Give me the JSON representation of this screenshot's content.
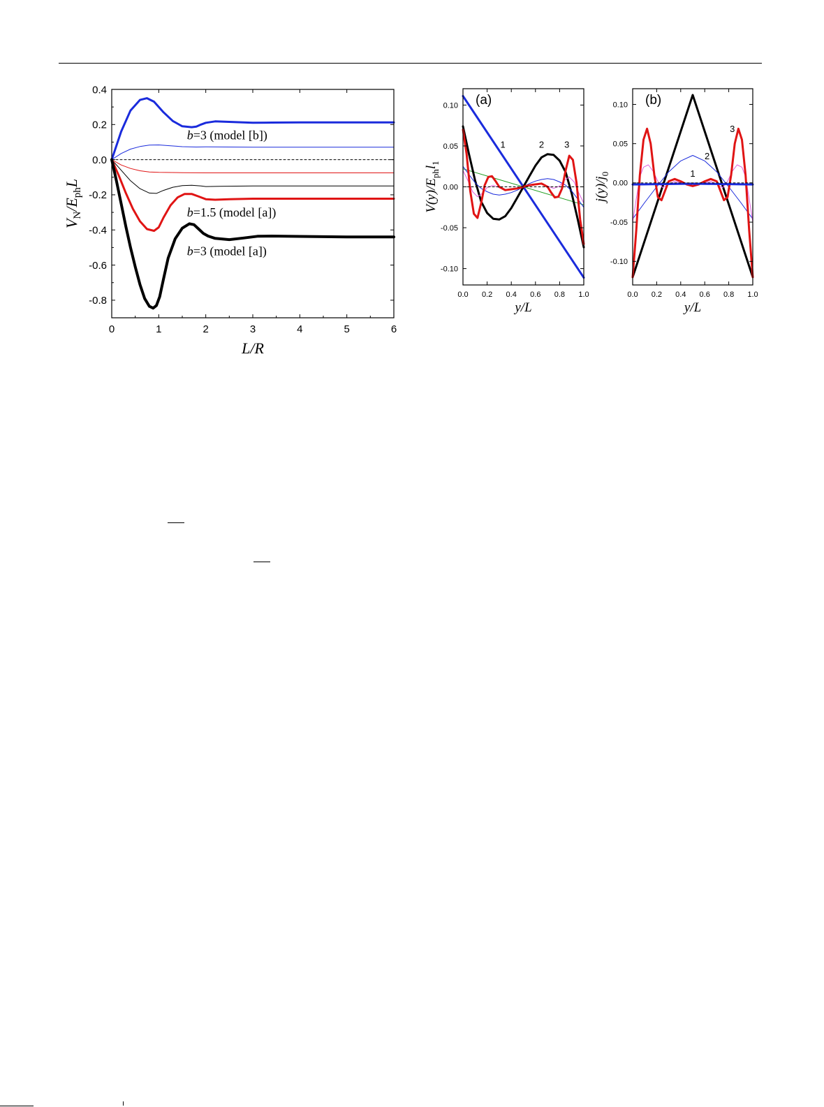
{
  "colors": {
    "black": "#000000",
    "blue": "#1a2bdc",
    "red": "#e01414",
    "green": "#1a9a1a",
    "magenta": "#e060e0"
  },
  "chart_data": [
    {
      "type": "line",
      "ylabel_main": "V",
      "ylabel_sub1": "N",
      "ylabel_mid": "/E",
      "ylabel_sub2": "ph",
      "ylabel_end": "L",
      "xlabel_main": "L/R",
      "xlim": [
        0,
        6
      ],
      "ylim": [
        -0.9,
        0.4
      ],
      "xticks": [
        0,
        1,
        2,
        3,
        4,
        5,
        6
      ],
      "yticks": [
        -0.8,
        -0.6,
        -0.4,
        -0.2,
        0.0,
        0.2,
        0.4
      ],
      "ytick_labels": [
        "-0.8",
        "-0.6",
        "-0.4",
        "-0.2",
        "0.0",
        "0.2",
        "0.4"
      ],
      "xtick_labels": [
        "0",
        "1",
        "2",
        "3",
        "4",
        "5",
        "6"
      ],
      "annotations": [
        {
          "pre": "b",
          "post": "=3 (model [b])",
          "x": 1.6,
          "y": 0.14
        },
        {
          "pre": "b",
          "post": "=1.5 (model [a])",
          "x": 1.6,
          "y": -0.3
        },
        {
          "pre": "b",
          "post": "=3 (model [a])",
          "x": 1.6,
          "y": -0.52
        }
      ],
      "series": [
        {
          "color": "blue",
          "width": 3,
          "x": [
            0,
            0.2,
            0.4,
            0.6,
            0.75,
            0.9,
            1.1,
            1.3,
            1.5,
            1.7,
            1.8,
            1.9,
            2.0,
            2.2,
            2.6,
            3.0,
            3.4,
            4,
            5,
            6
          ],
          "y": [
            0,
            0.16,
            0.28,
            0.34,
            0.35,
            0.33,
            0.27,
            0.22,
            0.19,
            0.185,
            0.188,
            0.2,
            0.21,
            0.218,
            0.214,
            0.21,
            0.211,
            0.212,
            0.212,
            0.212
          ]
        },
        {
          "color": "blue",
          "width": 1,
          "x": [
            0,
            0.2,
            0.4,
            0.6,
            0.8,
            1.0,
            1.2,
            1.5,
            1.8,
            2.0,
            2.5,
            3,
            4,
            5,
            6
          ],
          "y": [
            0,
            0.035,
            0.06,
            0.075,
            0.083,
            0.084,
            0.08,
            0.074,
            0.072,
            0.073,
            0.072,
            0.071,
            0.071,
            0.071,
            0.071
          ]
        },
        {
          "color": "red",
          "width": 1,
          "x": [
            0,
            0.2,
            0.4,
            0.6,
            0.8,
            1.0,
            1.5,
            2.0,
            3,
            4,
            5,
            6
          ],
          "y": [
            0,
            -0.03,
            -0.05,
            -0.063,
            -0.07,
            -0.072,
            -0.074,
            -0.075,
            -0.075,
            -0.075,
            -0.075,
            -0.075
          ]
        },
        {
          "color": "black",
          "width": 1,
          "x": [
            0,
            0.2,
            0.4,
            0.6,
            0.8,
            0.95,
            1.1,
            1.3,
            1.5,
            1.7,
            1.9,
            2.0,
            2.3,
            3,
            4,
            5,
            6
          ],
          "y": [
            0,
            -0.06,
            -0.12,
            -0.165,
            -0.19,
            -0.192,
            -0.175,
            -0.157,
            -0.148,
            -0.146,
            -0.15,
            -0.153,
            -0.152,
            -0.15,
            -0.15,
            -0.15,
            -0.15
          ]
        },
        {
          "color": "red",
          "width": 3,
          "x": [
            0,
            0.15,
            0.3,
            0.45,
            0.6,
            0.75,
            0.9,
            1.0,
            1.1,
            1.25,
            1.4,
            1.55,
            1.7,
            1.85,
            2.0,
            2.2,
            2.5,
            3,
            4,
            5,
            6
          ],
          "y": [
            0,
            -0.09,
            -0.19,
            -0.28,
            -0.35,
            -0.395,
            -0.405,
            -0.385,
            -0.33,
            -0.26,
            -0.215,
            -0.195,
            -0.195,
            -0.21,
            -0.225,
            -0.228,
            -0.225,
            -0.222,
            -0.222,
            -0.222,
            -0.222
          ]
        },
        {
          "color": "black",
          "width": 4,
          "x": [
            0,
            0.1,
            0.2,
            0.3,
            0.4,
            0.5,
            0.6,
            0.7,
            0.8,
            0.88,
            0.95,
            1.02,
            1.1,
            1.2,
            1.35,
            1.5,
            1.65,
            1.75,
            1.85,
            1.95,
            2.05,
            2.2,
            2.5,
            2.8,
            3.1,
            3.4,
            4,
            5,
            6
          ],
          "y": [
            0,
            -0.12,
            -0.25,
            -0.38,
            -0.5,
            -0.61,
            -0.71,
            -0.79,
            -0.835,
            -0.845,
            -0.83,
            -0.78,
            -0.68,
            -0.56,
            -0.45,
            -0.39,
            -0.365,
            -0.37,
            -0.395,
            -0.42,
            -0.435,
            -0.448,
            -0.455,
            -0.446,
            -0.436,
            -0.435,
            -0.437,
            -0.44,
            -0.44
          ]
        },
        {
          "color": "black",
          "width": 1,
          "dash": true,
          "x": [
            0,
            6
          ],
          "y": [
            0,
            0
          ]
        }
      ]
    },
    {
      "type": "line",
      "panel_label": "(a)",
      "ylabel_pre": "V(y)/E",
      "ylabel_sub1": "ph",
      "ylabel_mid": "l",
      "ylabel_sub2": "1",
      "xlabel": "y/L",
      "xlim": [
        0,
        1
      ],
      "ylim": [
        -0.12,
        0.12
      ],
      "xtick_labels": [
        "0.0",
        "0.2",
        "0.4",
        "0.6",
        "0.8",
        "1.0"
      ],
      "xticks": [
        0,
        0.2,
        0.4,
        0.6,
        0.8,
        1.0
      ],
      "ytick_labels": [
        "-0.10",
        "-0.05",
        "0.00",
        "0.05",
        "0.10"
      ],
      "yticks": [
        -0.1,
        -0.05,
        0,
        0.05,
        0.1
      ],
      "curve_labels": [
        {
          "text": "1",
          "x": 0.33,
          "y": 0.048
        },
        {
          "text": "2",
          "x": 0.65,
          "y": 0.048
        },
        {
          "text": "3",
          "x": 0.86,
          "y": 0.048
        }
      ],
      "series": [
        {
          "color": "blue",
          "width": 3,
          "x": [
            0,
            1
          ],
          "y": [
            0.111,
            -0.111
          ]
        },
        {
          "color": "green",
          "width": 1,
          "x": [
            0,
            1
          ],
          "y": [
            0.022,
            -0.022
          ]
        },
        {
          "color": "black",
          "width": 3,
          "x": [
            0,
            0.05,
            0.1,
            0.15,
            0.2,
            0.25,
            0.3,
            0.35,
            0.4,
            0.45,
            0.5,
            0.55,
            0.6,
            0.65,
            0.7,
            0.75,
            0.8,
            0.85,
            0.9,
            0.95,
            1.0
          ],
          "y": [
            0.074,
            0.04,
            0.008,
            -0.018,
            -0.032,
            -0.039,
            -0.04,
            -0.036,
            -0.026,
            -0.013,
            0,
            0.013,
            0.026,
            0.036,
            0.04,
            0.039,
            0.032,
            0.018,
            -0.008,
            -0.04,
            -0.074
          ]
        },
        {
          "color": "blue",
          "width": 1,
          "x": [
            0,
            0.05,
            0.1,
            0.15,
            0.2,
            0.25,
            0.3,
            0.35,
            0.4,
            0.45,
            0.5,
            0.55,
            0.6,
            0.65,
            0.7,
            0.75,
            0.8,
            0.85,
            0.9,
            0.95,
            1.0
          ],
          "y": [
            0.025,
            0.015,
            0.005,
            -0.002,
            -0.006,
            -0.009,
            -0.01,
            -0.009,
            -0.007,
            -0.004,
            0,
            0.004,
            0.007,
            0.009,
            0.01,
            0.009,
            0.006,
            0.002,
            -0.005,
            -0.015,
            -0.025
          ]
        },
        {
          "color": "magenta",
          "width": 1,
          "x": [
            0,
            0.04,
            0.08,
            0.12,
            0.16,
            0.2,
            0.25,
            0.3,
            0.35,
            0.4,
            0.45,
            0.5,
            0.55,
            0.6,
            0.65,
            0.7,
            0.75,
            0.8,
            0.84,
            0.88,
            0.92,
            0.96,
            1.0
          ],
          "y": [
            0.02,
            0.008,
            -0.006,
            -0.012,
            -0.008,
            -0.001,
            0.002,
            -0.001,
            -0.003,
            -0.003,
            -0.001,
            0,
            0.001,
            0.003,
            0.003,
            0.001,
            -0.002,
            0.001,
            0.008,
            0.012,
            0.006,
            -0.008,
            -0.02
          ]
        },
        {
          "color": "red",
          "width": 3,
          "x": [
            0,
            0.03,
            0.06,
            0.09,
            0.12,
            0.15,
            0.18,
            0.21,
            0.24,
            0.27,
            0.3,
            0.35,
            0.4,
            0.45,
            0.5,
            0.55,
            0.6,
            0.65,
            0.7,
            0.73,
            0.76,
            0.79,
            0.82,
            0.85,
            0.88,
            0.91,
            0.94,
            0.97,
            1.0
          ],
          "y": [
            0.07,
            0.04,
            -0.005,
            -0.033,
            -0.038,
            -0.02,
            0.002,
            0.012,
            0.013,
            0.007,
            0.0,
            -0.004,
            -0.003,
            -0.002,
            0,
            0.002,
            0.003,
            0.004,
            0.0,
            -0.007,
            -0.013,
            -0.012,
            -0.002,
            0.02,
            0.038,
            0.033,
            0.005,
            -0.04,
            -0.07
          ]
        },
        {
          "color": "black",
          "width": 1,
          "dash": true,
          "x": [
            0,
            1
          ],
          "y": [
            0,
            0
          ]
        }
      ]
    },
    {
      "type": "line",
      "panel_label": "(b)",
      "ylabel_pre": "j(y)/j",
      "ylabel_sub1": "0",
      "xlabel": "y/L",
      "xlim": [
        0,
        1
      ],
      "ylim": [
        -0.13,
        0.12
      ],
      "xtick_labels": [
        "0.0",
        "0.2",
        "0.4",
        "0.6",
        "0.8",
        "1.0"
      ],
      "xticks": [
        0,
        0.2,
        0.4,
        0.6,
        0.8,
        1.0
      ],
      "ytick_labels": [
        "-0.10",
        "-0.05",
        "0.00",
        "0.05",
        "0.10"
      ],
      "yticks": [
        -0.1,
        -0.05,
        0,
        0.05,
        0.1
      ],
      "curve_labels": [
        {
          "text": "1",
          "x": 0.5,
          "y": 0.008
        },
        {
          "text": "2",
          "x": 0.62,
          "y": 0.03
        },
        {
          "text": "3",
          "x": 0.83,
          "y": 0.065
        }
      ],
      "series": [
        {
          "color": "black",
          "width": 3,
          "x": [
            0,
            0.5,
            1.0
          ],
          "y": [
            -0.12,
            0.112,
            -0.12
          ]
        },
        {
          "color": "blue",
          "width": 1,
          "x": [
            0,
            0.1,
            0.2,
            0.3,
            0.4,
            0.5,
            0.6,
            0.7,
            0.8,
            0.9,
            1.0
          ],
          "y": [
            -0.046,
            -0.025,
            -0.005,
            0.014,
            0.028,
            0.035,
            0.028,
            0.014,
            -0.005,
            -0.025,
            -0.046
          ]
        },
        {
          "color": "magenta",
          "width": 1,
          "x": [
            0,
            0.03,
            0.06,
            0.09,
            0.13,
            0.17,
            0.21,
            0.25,
            0.3,
            0.35,
            0.4,
            0.45,
            0.5,
            0.55,
            0.6,
            0.65,
            0.7,
            0.75,
            0.79,
            0.83,
            0.87,
            0.91,
            0.94,
            0.97,
            1.0
          ],
          "y": [
            -0.05,
            -0.02,
            0.008,
            0.02,
            0.023,
            0.015,
            0.002,
            -0.006,
            -0.002,
            0.002,
            0.0,
            -0.001,
            -0.001,
            -0.001,
            0.0,
            0.002,
            -0.002,
            -0.006,
            0.002,
            0.015,
            0.023,
            0.02,
            0.008,
            -0.02,
            -0.05
          ]
        },
        {
          "color": "red",
          "width": 3,
          "x": [
            0,
            0.03,
            0.06,
            0.09,
            0.12,
            0.15,
            0.18,
            0.21,
            0.24,
            0.27,
            0.3,
            0.35,
            0.4,
            0.45,
            0.5,
            0.55,
            0.6,
            0.65,
            0.7,
            0.73,
            0.76,
            0.79,
            0.82,
            0.85,
            0.88,
            0.91,
            0.94,
            0.97,
            1.0
          ],
          "y": [
            -0.12,
            -0.06,
            0.01,
            0.055,
            0.069,
            0.05,
            0.01,
            -0.018,
            -0.022,
            -0.01,
            0.002,
            0.005,
            0.002,
            -0.002,
            -0.004,
            -0.002,
            0.002,
            0.005,
            0.002,
            -0.01,
            -0.022,
            -0.018,
            0.01,
            0.05,
            0.069,
            0.055,
            0.01,
            -0.06,
            -0.12
          ]
        },
        {
          "color": "blue",
          "width": 3,
          "x": [
            0,
            0.5,
            1.0
          ],
          "y": [
            -0.002,
            -0.001,
            -0.002
          ]
        },
        {
          "color": "black",
          "width": 1,
          "dash": true,
          "x": [
            0,
            1
          ],
          "y": [
            0,
            0
          ]
        }
      ]
    }
  ]
}
